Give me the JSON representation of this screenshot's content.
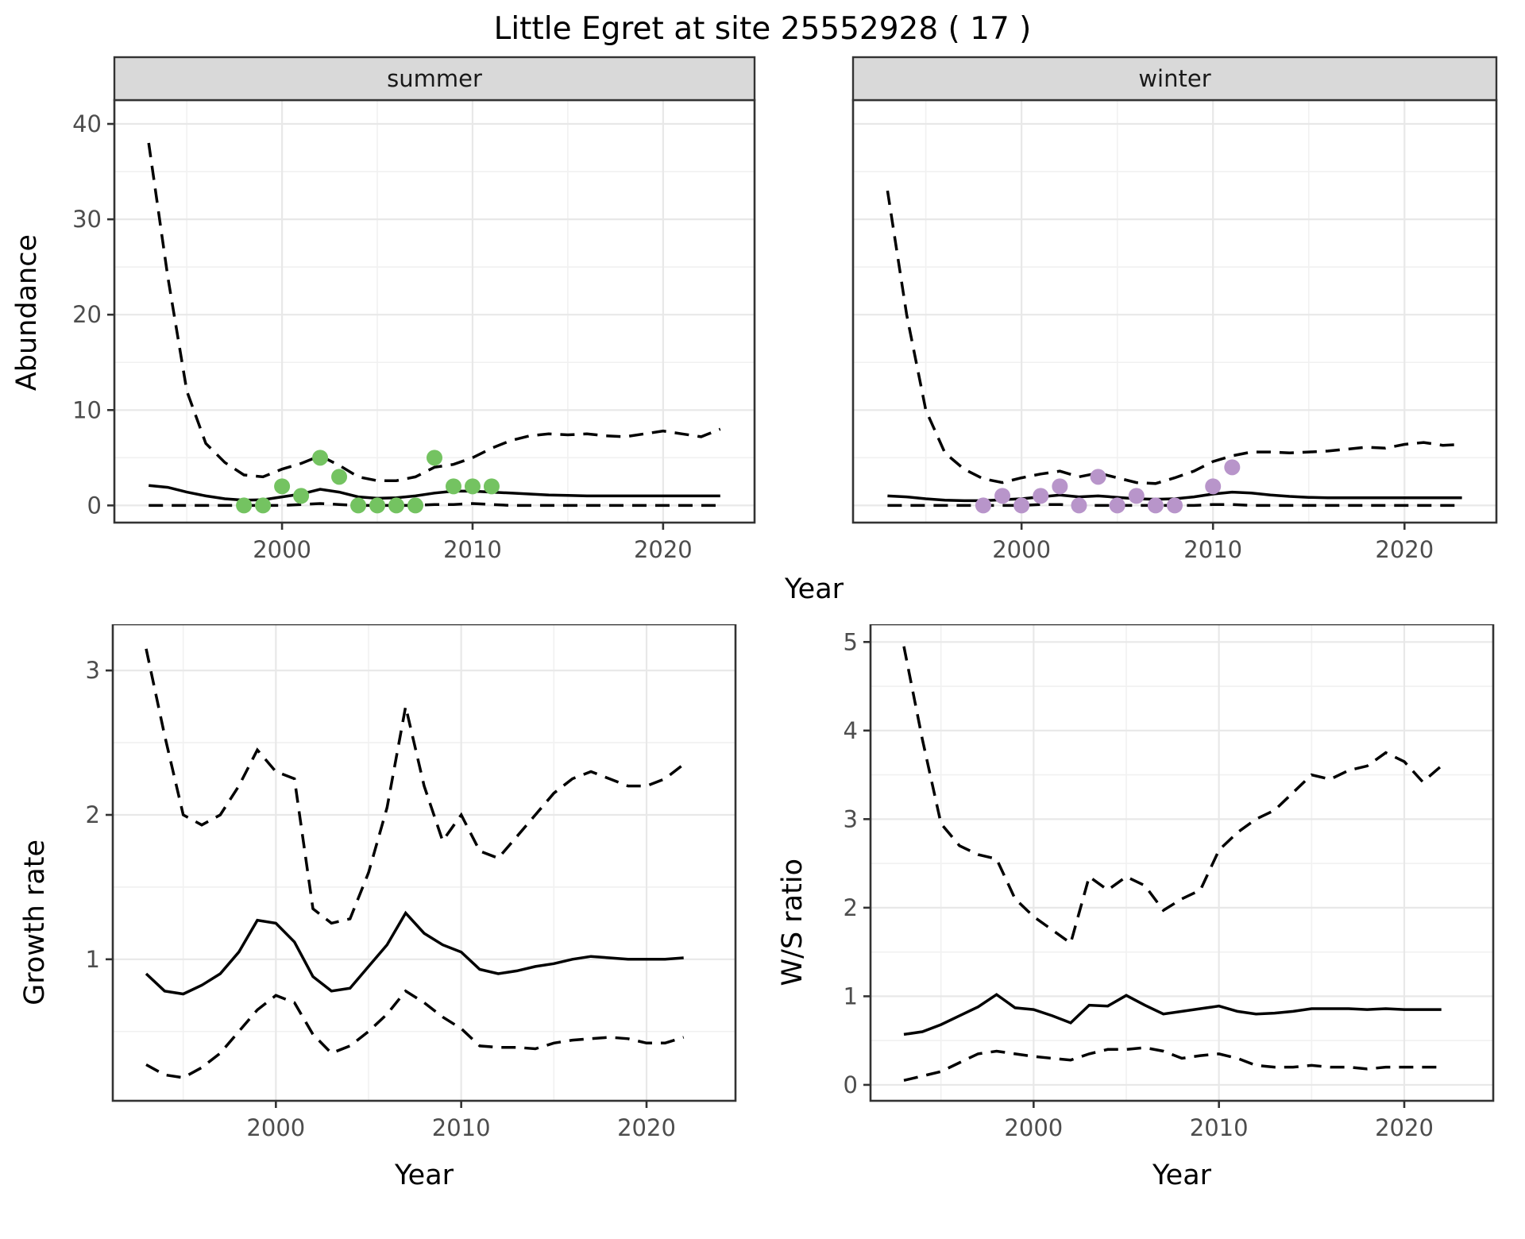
{
  "title": "Little Egret at site 25552928 ( 17 )",
  "top": {
    "ylabel": "Abundance",
    "xlabel": "Year"
  },
  "colors": {
    "summer_points": "#74C361",
    "winter_points": "#B895CA",
    "line": "#000000",
    "strip_fill": "#D9D9D9",
    "grid_major": "#E8E8E8",
    "grid_minor": "#F1F1F1",
    "panel_border": "#333333",
    "tick_text": "#4D4D4D"
  },
  "chart_data": [
    {
      "id": "summer",
      "type": "line",
      "facet": "summer",
      "ylabel": "Abundance",
      "xlabel": "Year",
      "xlim": [
        1991.2,
        2024.8
      ],
      "ylim": [
        -1.8,
        42.5
      ],
      "xticks": [
        2000,
        2010,
        2020
      ],
      "xminor": [
        1995,
        2005,
        2015,
        2025
      ],
      "yticks": [
        0,
        10,
        20,
        30,
        40
      ],
      "yminor": [
        5,
        15,
        25,
        35
      ],
      "show_ytick_labels": true,
      "show_xtitle": false,
      "x": [
        1993,
        1994,
        1995,
        1996,
        1997,
        1998,
        1999,
        2000,
        2001,
        2002,
        2003,
        2004,
        2005,
        2006,
        2007,
        2008,
        2009,
        2010,
        2011,
        2012,
        2013,
        2014,
        2015,
        2016,
        2017,
        2018,
        2019,
        2020,
        2021,
        2022,
        2023
      ],
      "series": [
        {
          "name": "upper CI",
          "style": "dashed",
          "values": [
            38,
            24,
            12,
            6.5,
            4.5,
            3.2,
            3,
            3.8,
            4.4,
            5.2,
            4.2,
            3,
            2.6,
            2.6,
            3,
            4,
            4.3,
            5,
            6,
            6.8,
            7.3,
            7.5,
            7.4,
            7.5,
            7.3,
            7.2,
            7.5,
            7.8,
            7.5,
            7.2,
            8
          ]
        },
        {
          "name": "median",
          "style": "solid",
          "values": [
            2.1,
            1.9,
            1.4,
            1,
            0.7,
            0.55,
            0.6,
            0.9,
            1.2,
            1.7,
            1.4,
            0.9,
            0.75,
            0.8,
            1,
            1.3,
            1.5,
            1.5,
            1.4,
            1.3,
            1.2,
            1.1,
            1.05,
            1,
            1,
            1,
            1,
            1,
            1,
            1,
            1
          ]
        },
        {
          "name": "lower CI",
          "style": "dashed",
          "values": [
            0,
            0,
            0,
            0,
            0,
            0,
            0,
            0,
            0.1,
            0.2,
            0.1,
            0,
            0,
            0,
            0,
            0.1,
            0.1,
            0.2,
            0.1,
            0,
            0,
            0,
            0,
            0,
            0,
            0,
            0,
            0,
            0,
            0,
            0
          ]
        }
      ],
      "points": {
        "name": "observed counts (summer)",
        "color": "#74C361",
        "x": [
          1998,
          1999,
          2000,
          2001,
          2002,
          2003,
          2004,
          2005,
          2006,
          2007,
          2008,
          2009,
          2010,
          2011
        ],
        "y": [
          0,
          0,
          2,
          1,
          5,
          3,
          0,
          0,
          0,
          0,
          5,
          2,
          2,
          2
        ]
      }
    },
    {
      "id": "winter",
      "type": "line",
      "facet": "winter",
      "ylabel": "Abundance",
      "xlabel": "Year",
      "xlim": [
        1991.2,
        2024.8
      ],
      "ylim": [
        -1.8,
        42.5
      ],
      "xticks": [
        2000,
        2010,
        2020
      ],
      "xminor": [
        1995,
        2005,
        2015,
        2025
      ],
      "yticks": [
        0,
        10,
        20,
        30,
        40
      ],
      "yminor": [
        5,
        15,
        25,
        35
      ],
      "show_ytick_labels": false,
      "show_xtitle": false,
      "x": [
        1993,
        1994,
        1995,
        1996,
        1997,
        1998,
        1999,
        2000,
        2001,
        2002,
        2003,
        2004,
        2005,
        2006,
        2007,
        2008,
        2009,
        2010,
        2011,
        2012,
        2013,
        2014,
        2015,
        2016,
        2017,
        2018,
        2019,
        2020,
        2021,
        2022,
        2023
      ],
      "series": [
        {
          "name": "upper CI",
          "style": "dashed",
          "values": [
            33,
            20,
            10,
            5.5,
            3.8,
            2.8,
            2.4,
            2.9,
            3.3,
            3.6,
            3,
            3.4,
            2.9,
            2.4,
            2.3,
            2.9,
            3.6,
            4.6,
            5.2,
            5.6,
            5.6,
            5.5,
            5.6,
            5.7,
            5.9,
            6.1,
            6,
            6.4,
            6.6,
            6.3,
            6.4
          ]
        },
        {
          "name": "median",
          "style": "solid",
          "values": [
            1,
            0.9,
            0.7,
            0.55,
            0.5,
            0.5,
            0.6,
            0.7,
            0.9,
            1.1,
            0.9,
            1,
            0.85,
            0.7,
            0.65,
            0.7,
            0.9,
            1.2,
            1.4,
            1.3,
            1.1,
            0.95,
            0.85,
            0.8,
            0.8,
            0.8,
            0.8,
            0.8,
            0.8,
            0.8,
            0.8
          ]
        },
        {
          "name": "lower CI",
          "style": "dashed",
          "values": [
            0,
            0,
            0,
            0,
            0,
            0,
            0,
            0,
            0.1,
            0.1,
            0,
            0,
            0,
            0,
            0,
            0,
            0,
            0.1,
            0.1,
            0,
            0,
            0,
            0,
            0,
            0,
            0,
            0,
            0,
            0,
            0,
            0
          ]
        }
      ],
      "points": {
        "name": "observed counts (winter)",
        "color": "#B895CA",
        "x": [
          1998,
          1999,
          2000,
          2001,
          2002,
          2003,
          2004,
          2005,
          2006,
          2007,
          2008,
          2010,
          2011
        ],
        "y": [
          0,
          1,
          0,
          1,
          2,
          0,
          3,
          0,
          1,
          0,
          0,
          2,
          4
        ]
      }
    },
    {
      "id": "growth",
      "type": "line",
      "facet": null,
      "ylabel": "Growth rate",
      "xlabel": "Year",
      "xlim": [
        1991.2,
        2024.8
      ],
      "ylim": [
        0.02,
        3.32
      ],
      "xticks": [
        2000,
        2010,
        2020
      ],
      "xminor": [
        1995,
        2005,
        2015,
        2025
      ],
      "yticks": [
        1,
        2,
        3
      ],
      "yminor": [
        0.5,
        1.5,
        2.5
      ],
      "show_ytick_labels": true,
      "show_xtitle": true,
      "x": [
        1993,
        1994,
        1995,
        1996,
        1997,
        1998,
        1999,
        2000,
        2001,
        2002,
        2003,
        2004,
        2005,
        2006,
        2007,
        2008,
        2009,
        2010,
        2011,
        2012,
        2013,
        2014,
        2015,
        2016,
        2017,
        2018,
        2019,
        2020,
        2021,
        2022
      ],
      "series": [
        {
          "name": "upper CI",
          "style": "dashed",
          "values": [
            3.15,
            2.55,
            2,
            1.93,
            2,
            2.2,
            2.45,
            2.3,
            2.25,
            1.35,
            1.25,
            1.28,
            1.6,
            2.05,
            2.75,
            2.2,
            1.82,
            2,
            1.75,
            1.7,
            1.85,
            2,
            2.15,
            2.25,
            2.3,
            2.25,
            2.2,
            2.2,
            2.25,
            2.35
          ]
        },
        {
          "name": "median",
          "style": "solid",
          "values": [
            0.9,
            0.78,
            0.76,
            0.82,
            0.9,
            1.05,
            1.27,
            1.25,
            1.12,
            0.88,
            0.78,
            0.8,
            0.95,
            1.1,
            1.32,
            1.18,
            1.1,
            1.05,
            0.93,
            0.9,
            0.92,
            0.95,
            0.97,
            1,
            1.02,
            1.01,
            1,
            1,
            1,
            1.01
          ]
        },
        {
          "name": "lower CI",
          "style": "dashed",
          "values": [
            0.27,
            0.2,
            0.18,
            0.25,
            0.35,
            0.5,
            0.65,
            0.75,
            0.7,
            0.48,
            0.35,
            0.4,
            0.5,
            0.62,
            0.78,
            0.7,
            0.6,
            0.52,
            0.4,
            0.39,
            0.39,
            0.38,
            0.42,
            0.44,
            0.45,
            0.46,
            0.45,
            0.42,
            0.42,
            0.46
          ]
        }
      ],
      "points": null
    },
    {
      "id": "ws",
      "type": "line",
      "facet": null,
      "ylabel": "W/S ratio",
      "xlabel": "Year",
      "xlim": [
        1991.2,
        2024.8
      ],
      "ylim": [
        -0.18,
        5.2
      ],
      "xticks": [
        2000,
        2010,
        2020
      ],
      "xminor": [
        1995,
        2005,
        2015,
        2025
      ],
      "yticks": [
        0,
        1,
        2,
        3,
        4,
        5
      ],
      "yminor": [
        0.5,
        1.5,
        2.5,
        3.5,
        4.5
      ],
      "show_ytick_labels": true,
      "show_xtitle": true,
      "x": [
        1993,
        1994,
        1995,
        1996,
        1997,
        1998,
        1999,
        2000,
        2001,
        2002,
        2003,
        2004,
        2005,
        2006,
        2007,
        2008,
        2009,
        2010,
        2011,
        2012,
        2013,
        2014,
        2015,
        2016,
        2017,
        2018,
        2019,
        2020,
        2021,
        2022
      ],
      "series": [
        {
          "name": "upper CI",
          "style": "dashed",
          "values": [
            4.95,
            3.9,
            2.95,
            2.7,
            2.6,
            2.55,
            2.1,
            1.9,
            1.75,
            1.6,
            2.35,
            2.2,
            2.35,
            2.25,
            1.97,
            2.1,
            2.2,
            2.65,
            2.85,
            3,
            3.1,
            3.3,
            3.5,
            3.45,
            3.55,
            3.6,
            3.75,
            3.65,
            3.42,
            3.6
          ]
        },
        {
          "name": "median",
          "style": "solid",
          "values": [
            0.57,
            0.6,
            0.68,
            0.78,
            0.88,
            1.02,
            0.87,
            0.85,
            0.78,
            0.7,
            0.9,
            0.89,
            1.01,
            0.9,
            0.8,
            0.83,
            0.86,
            0.89,
            0.83,
            0.8,
            0.81,
            0.83,
            0.86,
            0.86,
            0.86,
            0.85,
            0.86,
            0.85,
            0.85,
            0.85
          ]
        },
        {
          "name": "lower CI",
          "style": "dashed",
          "values": [
            0.05,
            0.1,
            0.15,
            0.25,
            0.35,
            0.38,
            0.35,
            0.32,
            0.3,
            0.28,
            0.35,
            0.4,
            0.4,
            0.42,
            0.38,
            0.3,
            0.33,
            0.35,
            0.3,
            0.22,
            0.2,
            0.2,
            0.22,
            0.2,
            0.2,
            0.18,
            0.2,
            0.2,
            0.2,
            0.2
          ]
        }
      ],
      "points": null
    }
  ]
}
